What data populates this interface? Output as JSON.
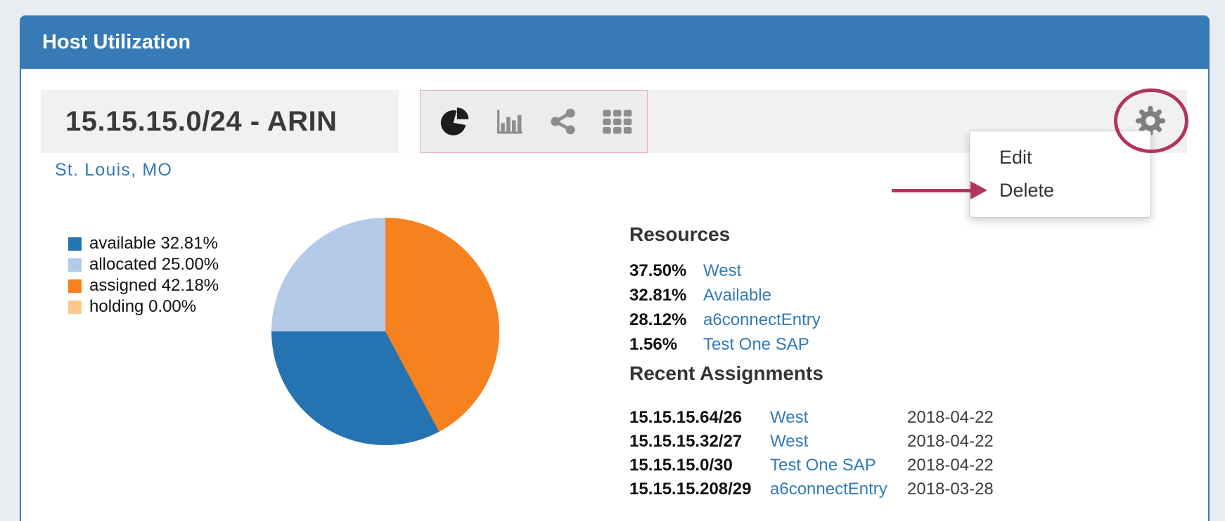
{
  "panel": {
    "title": "Host Utilization"
  },
  "block": {
    "title": "15.15.15.0/24 - ARIN",
    "location": "St. Louis, MO",
    "toolbar_views": [
      "pie-chart",
      "bar-chart",
      "share",
      "grid"
    ],
    "gear_menu": {
      "items": [
        "Edit",
        "Delete"
      ]
    }
  },
  "chart_data": {
    "type": "pie",
    "legend_position": "left",
    "slices": [
      {
        "label": "available",
        "value": 32.81,
        "color": "#2573b1"
      },
      {
        "label": "allocated",
        "value": 25.0,
        "color": "#b3cbe8"
      },
      {
        "label": "assigned",
        "value": 42.18,
        "color": "#f5811f"
      },
      {
        "label": "holding",
        "value": 0.0,
        "color": "#fbc98c"
      }
    ],
    "clockwise_from_top": [
      "assigned",
      "available",
      "allocated",
      "holding"
    ]
  },
  "resources": {
    "heading": "Resources",
    "rows": [
      {
        "percent": "37.50%",
        "name": "West"
      },
      {
        "percent": "32.81%",
        "name": "Available"
      },
      {
        "percent": "28.12%",
        "name": "a6connectEntry"
      },
      {
        "percent": "1.56%",
        "name": "Test One SAP"
      }
    ]
  },
  "recent_assignments": {
    "heading": "Recent Assignments",
    "rows": [
      {
        "cidr": "15.15.15.64/26",
        "name": "West",
        "date": "2018-04-22"
      },
      {
        "cidr": "15.15.15.32/27",
        "name": "West",
        "date": "2018-04-22"
      },
      {
        "cidr": "15.15.15.0/30",
        "name": "Test One SAP",
        "date": "2018-04-22"
      },
      {
        "cidr": "15.15.15.208/29",
        "name": "a6connectEntry",
        "date": "2018-03-28"
      }
    ]
  },
  "annotations": {
    "color": "#b23460",
    "circled_element": "gear-button",
    "arrow_points_to": "Delete"
  },
  "colors": {
    "header_blue": "#377ab6",
    "link_blue": "#337ab7"
  }
}
